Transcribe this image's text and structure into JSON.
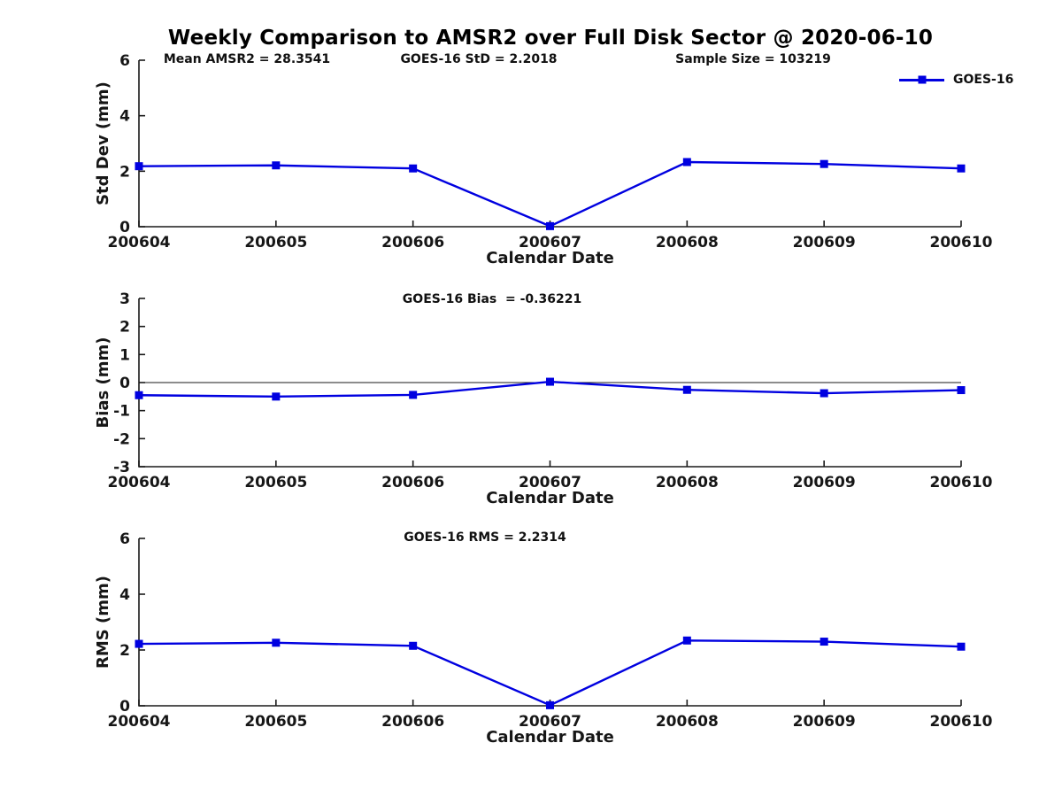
{
  "figure": {
    "title": "Weekly Comparison to AMSR2 over Full Disk Sector @ 2020-06-10",
    "colors": {
      "line": "#0000e0",
      "axis": "#1a1a1a",
      "text": "#161616",
      "background": "#ffffff"
    }
  },
  "chart_data": [
    {
      "type": "line",
      "categories": [
        "200604",
        "200605",
        "200606",
        "200607",
        "200608",
        "200609",
        "200610"
      ],
      "series": [
        {
          "name": "GOES-16",
          "values": [
            2.18,
            2.21,
            2.1,
            0.02,
            2.33,
            2.26,
            2.1
          ]
        }
      ],
      "xlabel": "Calendar Date",
      "ylabel": "Std Dev (mm)",
      "ylim": [
        0,
        6
      ],
      "yticks": [
        0,
        2,
        4,
        6
      ],
      "grid": false,
      "zero_line": false,
      "marker": "square",
      "annotations": [
        "Mean AMSR2 = 28.3541",
        "GOES-16 StD = 2.2018",
        "Sample Size = 103219"
      ],
      "legend": {
        "label": "GOES-16",
        "position": "top-right"
      }
    },
    {
      "type": "line",
      "categories": [
        "200604",
        "200605",
        "200606",
        "200607",
        "200608",
        "200609",
        "200610"
      ],
      "series": [
        {
          "name": "GOES-16",
          "values": [
            -0.45,
            -0.5,
            -0.44,
            0.03,
            -0.26,
            -0.38,
            -0.27
          ]
        }
      ],
      "xlabel": "Calendar Date",
      "ylabel": "Bias (mm)",
      "ylim": [
        -3,
        3
      ],
      "yticks": [
        -3,
        -2,
        -1,
        0,
        1,
        2,
        3
      ],
      "grid": false,
      "zero_line": true,
      "marker": "square",
      "annotations": [
        "GOES-16 Bias  = -0.36221"
      ],
      "legend": null
    },
    {
      "type": "line",
      "categories": [
        "200604",
        "200605",
        "200606",
        "200607",
        "200608",
        "200609",
        "200610"
      ],
      "series": [
        {
          "name": "GOES-16",
          "values": [
            2.22,
            2.26,
            2.15,
            0.02,
            2.34,
            2.3,
            2.12
          ]
        }
      ],
      "xlabel": "Calendar Date",
      "ylabel": "RMS (mm)",
      "ylim": [
        0,
        6
      ],
      "yticks": [
        0,
        2,
        4,
        6
      ],
      "grid": false,
      "zero_line": false,
      "marker": "square",
      "annotations": [
        "GOES-16 RMS = 2.2314"
      ],
      "legend": null
    }
  ]
}
